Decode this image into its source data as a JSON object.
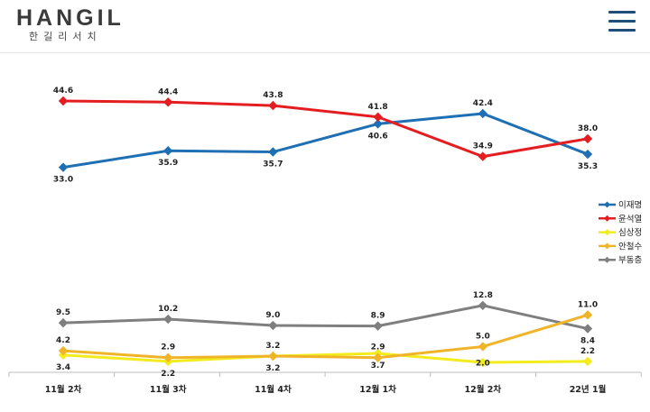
{
  "header": {
    "logo": "HANGIL",
    "logo_sub": "한길리서치",
    "menu_icon": "hamburger-menu-icon"
  },
  "chart_data": {
    "type": "line",
    "title": "",
    "xlabel": "",
    "ylabel": "",
    "categories": [
      "11월 2차",
      "11월 3차",
      "11월 4차",
      "12월 1차",
      "12월 2차",
      "22년 1월"
    ],
    "grid": false,
    "legend_position": "right",
    "series": [
      {
        "name": "이재명",
        "color": "#1f6fb5",
        "values": [
          33.0,
          35.9,
          35.7,
          40.6,
          42.4,
          35.3
        ],
        "labels": [
          "33.0",
          "35.9",
          "35.7",
          "40.6",
          "42.4",
          "35.3"
        ],
        "label_side": [
          "below",
          "below",
          "below",
          "below",
          "above",
          "below"
        ]
      },
      {
        "name": "윤석열",
        "color": "#e41e20",
        "values": [
          44.6,
          44.4,
          43.8,
          41.8,
          34.9,
          38.0
        ],
        "labels": [
          "44.6",
          "44.4",
          "43.8",
          "41.8",
          "34.9",
          "38.0"
        ],
        "label_side": [
          "above",
          "above",
          "above",
          "above",
          "above",
          "above"
        ]
      },
      {
        "name": "심상정",
        "color": "#f2ec1c",
        "values": [
          3.4,
          2.2,
          3.2,
          3.7,
          2.0,
          2.2
        ],
        "labels": [
          "3.4",
          "2.2",
          "3.2",
          "3.7",
          "2.0",
          "2.2"
        ],
        "label_side": [
          "below",
          "below",
          "below",
          "below",
          "center",
          "above"
        ]
      },
      {
        "name": "안철수",
        "color": "#f0b428",
        "values": [
          4.2,
          2.9,
          3.2,
          2.9,
          5.0,
          11.0
        ],
        "labels": [
          "4.2",
          "2.9",
          "3.2",
          "2.9",
          "5.0",
          "11.0"
        ],
        "label_side": [
          "above",
          "above",
          "above",
          "above",
          "above",
          "above"
        ]
      },
      {
        "name": "부동층",
        "color": "#7f7f7f",
        "values": [
          9.5,
          10.2,
          9.0,
          8.9,
          12.8,
          8.4
        ],
        "labels": [
          "9.5",
          "10.2",
          "9.0",
          "8.9",
          "12.8",
          "8.4"
        ],
        "label_side": [
          "above",
          "above",
          "above",
          "above",
          "above",
          "below"
        ]
      }
    ]
  }
}
